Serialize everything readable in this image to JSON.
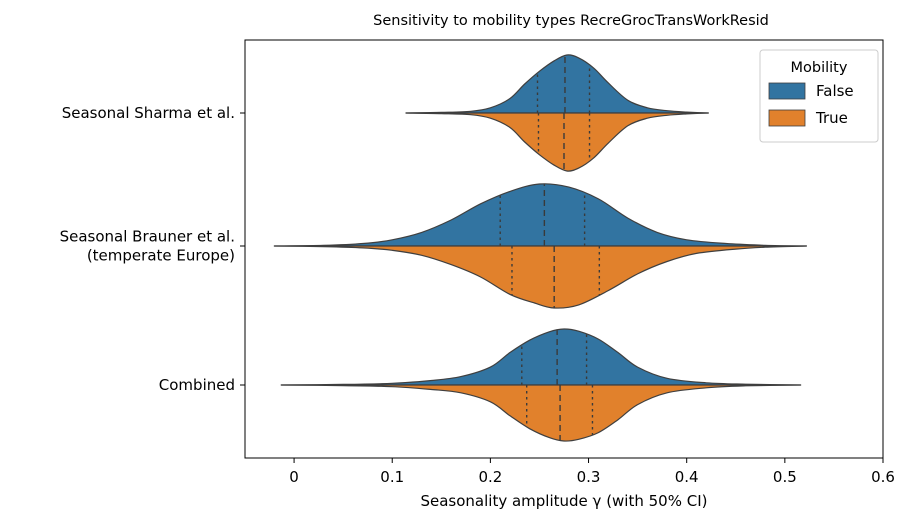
{
  "chart_data": {
    "type": "violin",
    "title": "Sensitivity to mobility types RecreGrocTransWorkResid",
    "xlabel": "Seasonality amplitude γ (with 50% CI)",
    "ylabel": "",
    "xlim": [
      -0.05,
      0.6
    ],
    "xticks": [
      "0",
      "0.1",
      "0.2",
      "0.3",
      "0.4",
      "0.5",
      "0.6"
    ],
    "xtick_values": [
      0,
      0.1,
      0.2,
      0.3,
      0.4,
      0.5,
      0.6
    ],
    "split": true,
    "legend": {
      "title": "Mobility",
      "position": "top-right",
      "entries": [
        {
          "name": "False",
          "color": "#3274a1"
        },
        {
          "name": "True",
          "color": "#e1812c"
        }
      ]
    },
    "categories": [
      {
        "label": [
          "Seasonal Sharma et al."
        ],
        "False": {
          "range": [
            0.114,
            0.422
          ],
          "q1": 0.248,
          "median": 0.276,
          "q3": 0.301,
          "profile": [
            [
              0.114,
              0
            ],
            [
              0.15,
              0.01
            ],
            [
              0.18,
              0.03
            ],
            [
              0.2,
              0.09
            ],
            [
              0.22,
              0.25
            ],
            [
              0.235,
              0.5
            ],
            [
              0.25,
              0.72
            ],
            [
              0.265,
              0.9
            ],
            [
              0.278,
              1.0
            ],
            [
              0.29,
              0.95
            ],
            [
              0.305,
              0.78
            ],
            [
              0.32,
              0.52
            ],
            [
              0.34,
              0.22
            ],
            [
              0.36,
              0.09
            ],
            [
              0.38,
              0.04
            ],
            [
              0.4,
              0.015
            ],
            [
              0.422,
              0
            ]
          ]
        },
        "True": {
          "range": [
            0.114,
            0.422
          ],
          "q1": 0.249,
          "median": 0.275,
          "q3": 0.301,
          "profile": [
            [
              0.114,
              0
            ],
            [
              0.15,
              0.01
            ],
            [
              0.18,
              0.03
            ],
            [
              0.2,
              0.09
            ],
            [
              0.22,
              0.25
            ],
            [
              0.235,
              0.5
            ],
            [
              0.25,
              0.72
            ],
            [
              0.265,
              0.9
            ],
            [
              0.278,
              1.0
            ],
            [
              0.29,
              0.95
            ],
            [
              0.305,
              0.78
            ],
            [
              0.32,
              0.52
            ],
            [
              0.34,
              0.22
            ],
            [
              0.36,
              0.09
            ],
            [
              0.38,
              0.04
            ],
            [
              0.4,
              0.015
            ],
            [
              0.422,
              0
            ]
          ]
        }
      },
      {
        "label": [
          "Seasonal Brauner et al.",
          "(temperate Europe)"
        ],
        "False": {
          "range": [
            -0.02,
            0.522
          ],
          "q1": 0.21,
          "median": 0.255,
          "q3": 0.296,
          "profile": [
            [
              -0.02,
              0
            ],
            [
              0.03,
              0.01
            ],
            [
              0.07,
              0.04
            ],
            [
              0.1,
              0.1
            ],
            [
              0.13,
              0.22
            ],
            [
              0.16,
              0.42
            ],
            [
              0.19,
              0.68
            ],
            [
              0.22,
              0.88
            ],
            [
              0.25,
              1.0
            ],
            [
              0.28,
              0.95
            ],
            [
              0.31,
              0.76
            ],
            [
              0.34,
              0.45
            ],
            [
              0.37,
              0.22
            ],
            [
              0.4,
              0.1
            ],
            [
              0.44,
              0.04
            ],
            [
              0.48,
              0.012
            ],
            [
              0.522,
              0
            ]
          ]
        },
        "True": {
          "range": [
            -0.02,
            0.522
          ],
          "q1": 0.222,
          "median": 0.265,
          "q3": 0.311,
          "profile": [
            [
              -0.02,
              0
            ],
            [
              0.03,
              0.01
            ],
            [
              0.07,
              0.03
            ],
            [
              0.1,
              0.07
            ],
            [
              0.13,
              0.15
            ],
            [
              0.16,
              0.3
            ],
            [
              0.19,
              0.5
            ],
            [
              0.22,
              0.78
            ],
            [
              0.245,
              0.92
            ],
            [
              0.265,
              1.0
            ],
            [
              0.29,
              0.95
            ],
            [
              0.32,
              0.72
            ],
            [
              0.35,
              0.45
            ],
            [
              0.38,
              0.25
            ],
            [
              0.41,
              0.12
            ],
            [
              0.45,
              0.05
            ],
            [
              0.48,
              0.02
            ],
            [
              0.522,
              0
            ]
          ]
        }
      },
      {
        "label": [
          "Combined"
        ],
        "False": {
          "range": [
            -0.013,
            0.516
          ],
          "q1": 0.232,
          "median": 0.268,
          "q3": 0.298,
          "profile": [
            [
              -0.013,
              0
            ],
            [
              0.05,
              0.01
            ],
            [
              0.1,
              0.03
            ],
            [
              0.14,
              0.08
            ],
            [
              0.17,
              0.15
            ],
            [
              0.2,
              0.32
            ],
            [
              0.22,
              0.58
            ],
            [
              0.24,
              0.8
            ],
            [
              0.26,
              0.95
            ],
            [
              0.275,
              1.0
            ],
            [
              0.29,
              0.96
            ],
            [
              0.31,
              0.82
            ],
            [
              0.33,
              0.58
            ],
            [
              0.35,
              0.32
            ],
            [
              0.38,
              0.12
            ],
            [
              0.42,
              0.04
            ],
            [
              0.46,
              0.015
            ],
            [
              0.516,
              0
            ]
          ]
        },
        "True": {
          "range": [
            -0.013,
            0.516
          ],
          "q1": 0.237,
          "median": 0.271,
          "q3": 0.304,
          "profile": [
            [
              -0.013,
              0
            ],
            [
              0.05,
              0.01
            ],
            [
              0.1,
              0.03
            ],
            [
              0.14,
              0.08
            ],
            [
              0.17,
              0.14
            ],
            [
              0.2,
              0.3
            ],
            [
              0.22,
              0.55
            ],
            [
              0.24,
              0.78
            ],
            [
              0.26,
              0.94
            ],
            [
              0.275,
              1.0
            ],
            [
              0.29,
              0.97
            ],
            [
              0.31,
              0.85
            ],
            [
              0.33,
              0.62
            ],
            [
              0.35,
              0.35
            ],
            [
              0.38,
              0.14
            ],
            [
              0.42,
              0.05
            ],
            [
              0.46,
              0.015
            ],
            [
              0.516,
              0
            ]
          ]
        }
      }
    ]
  }
}
